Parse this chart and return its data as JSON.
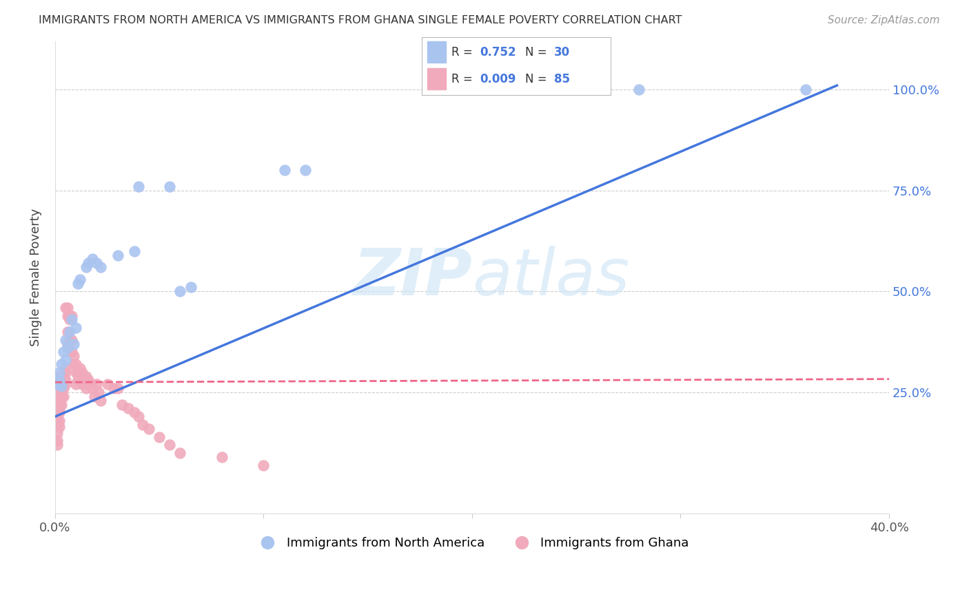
{
  "title": "IMMIGRANTS FROM NORTH AMERICA VS IMMIGRANTS FROM GHANA SINGLE FEMALE POVERTY CORRELATION CHART",
  "source": "Source: ZipAtlas.com",
  "ylabel": "Single Female Poverty",
  "legend_label1": "Immigrants from North America",
  "legend_label2": "Immigrants from Ghana",
  "R1": "0.752",
  "N1": "30",
  "R2": "0.009",
  "N2": "85",
  "blue_color": "#aac4f0",
  "pink_color": "#f0aabc",
  "blue_line_color": "#4477dd",
  "pink_line_color": "#ee6688",
  "watermark_zip": "ZIP",
  "watermark_atlas": "atlas",
  "xlim": [
    0.0,
    0.4
  ],
  "ylim": [
    -0.05,
    1.12
  ],
  "yticks": [
    0.25,
    0.5,
    0.75,
    1.0
  ],
  "ytick_labels": [
    "25.0%",
    "50.0%",
    "75.0%",
    "100.0%"
  ],
  "xticks": [
    0.0,
    0.1,
    0.2,
    0.3,
    0.4
  ],
  "xtick_labels": [
    "0.0%",
    "",
    "",
    "",
    "40.0%"
  ],
  "north_america_x": [
    0.001,
    0.002,
    0.002,
    0.003,
    0.003,
    0.004,
    0.005,
    0.005,
    0.006,
    0.007,
    0.008,
    0.009,
    0.01,
    0.011,
    0.012,
    0.015,
    0.016,
    0.018,
    0.02,
    0.022,
    0.03,
    0.038,
    0.04,
    0.055,
    0.06,
    0.065,
    0.11,
    0.12,
    0.28,
    0.36
  ],
  "north_america_y": [
    0.27,
    0.28,
    0.3,
    0.265,
    0.32,
    0.35,
    0.33,
    0.38,
    0.36,
    0.4,
    0.43,
    0.37,
    0.41,
    0.52,
    0.53,
    0.56,
    0.57,
    0.58,
    0.57,
    0.56,
    0.59,
    0.6,
    0.76,
    0.76,
    0.5,
    0.51,
    0.8,
    0.8,
    1.0,
    1.0
  ],
  "ghana_x": [
    0.001,
    0.001,
    0.001,
    0.001,
    0.001,
    0.001,
    0.001,
    0.001,
    0.001,
    0.001,
    0.001,
    0.001,
    0.001,
    0.001,
    0.001,
    0.002,
    0.002,
    0.002,
    0.002,
    0.002,
    0.002,
    0.002,
    0.002,
    0.002,
    0.003,
    0.003,
    0.003,
    0.003,
    0.003,
    0.003,
    0.003,
    0.004,
    0.004,
    0.004,
    0.004,
    0.004,
    0.005,
    0.005,
    0.005,
    0.005,
    0.005,
    0.006,
    0.006,
    0.006,
    0.006,
    0.007,
    0.007,
    0.007,
    0.008,
    0.008,
    0.008,
    0.009,
    0.009,
    0.01,
    0.01,
    0.01,
    0.011,
    0.011,
    0.012,
    0.013,
    0.013,
    0.014,
    0.015,
    0.015,
    0.016,
    0.017,
    0.018,
    0.019,
    0.02,
    0.021,
    0.022,
    0.025,
    0.028,
    0.03,
    0.032,
    0.035,
    0.038,
    0.04,
    0.042,
    0.045,
    0.05,
    0.055,
    0.06,
    0.08,
    0.1
  ],
  "ghana_y": [
    0.285,
    0.27,
    0.26,
    0.25,
    0.24,
    0.23,
    0.22,
    0.21,
    0.2,
    0.19,
    0.18,
    0.17,
    0.15,
    0.13,
    0.12,
    0.285,
    0.27,
    0.26,
    0.24,
    0.22,
    0.21,
    0.2,
    0.18,
    0.165,
    0.29,
    0.28,
    0.27,
    0.26,
    0.25,
    0.24,
    0.22,
    0.29,
    0.28,
    0.27,
    0.26,
    0.24,
    0.31,
    0.3,
    0.28,
    0.27,
    0.46,
    0.46,
    0.44,
    0.4,
    0.37,
    0.44,
    0.43,
    0.38,
    0.44,
    0.38,
    0.35,
    0.34,
    0.32,
    0.32,
    0.3,
    0.27,
    0.3,
    0.28,
    0.31,
    0.3,
    0.27,
    0.28,
    0.29,
    0.26,
    0.28,
    0.27,
    0.26,
    0.24,
    0.27,
    0.25,
    0.23,
    0.27,
    0.26,
    0.26,
    0.22,
    0.21,
    0.2,
    0.19,
    0.17,
    0.16,
    0.14,
    0.12,
    0.1,
    0.09,
    0.07
  ],
  "blue_trendline_x": [
    0.0,
    0.375
  ],
  "blue_trendline_y": [
    0.19,
    1.01
  ],
  "pink_trendline_x": [
    0.0,
    0.4
  ],
  "pink_trendline_y": [
    0.275,
    0.283
  ]
}
